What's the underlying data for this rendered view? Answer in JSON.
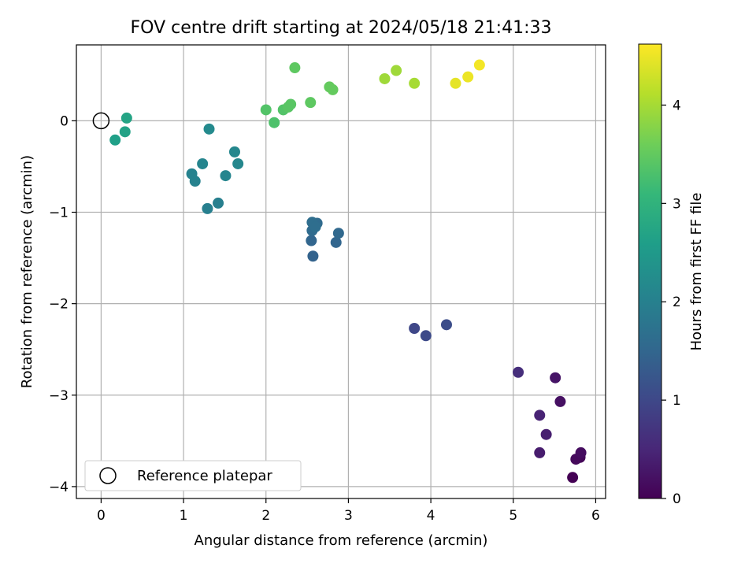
{
  "chart_data": {
    "type": "scatter",
    "title": "FOV centre drift starting at 2024/05/18 21:41:33",
    "xlabel": "Angular distance from reference (arcmin)",
    "ylabel": "Rotation from reference (arcmin)",
    "xlim": [
      -0.3,
      6.12
    ],
    "ylim": [
      -4.13,
      0.83
    ],
    "xticks": [
      0,
      1,
      2,
      3,
      4,
      5,
      6
    ],
    "yticks": [
      -4,
      -3,
      -2,
      -1,
      0
    ],
    "grid": true,
    "legend": {
      "label": "Reference platepar",
      "placement": "lower-left"
    },
    "reference_point": {
      "x": 0,
      "y": 0
    },
    "colorbar": {
      "label": "Hours from first FF file",
      "range": [
        0,
        4.62
      ],
      "ticks": [
        0,
        1,
        2,
        3,
        4
      ],
      "colormap": "viridis",
      "stops": [
        "#440154",
        "#482878",
        "#3e4989",
        "#31688e",
        "#26828e",
        "#1f9e89",
        "#35b779",
        "#6ece58",
        "#b5de2b",
        "#fde725"
      ]
    },
    "points": [
      {
        "x": 5.72,
        "y": -3.9,
        "hours": 0.0
      },
      {
        "x": 5.81,
        "y": -3.68,
        "hours": 0.05
      },
      {
        "x": 5.76,
        "y": -3.7,
        "hours": 0.1
      },
      {
        "x": 5.82,
        "y": -3.63,
        "hours": 0.15
      },
      {
        "x": 5.57,
        "y": -3.07,
        "hours": 0.2
      },
      {
        "x": 5.51,
        "y": -2.81,
        "hours": 0.25
      },
      {
        "x": 5.32,
        "y": -3.63,
        "hours": 0.35
      },
      {
        "x": 5.4,
        "y": -3.43,
        "hours": 0.4
      },
      {
        "x": 5.32,
        "y": -3.22,
        "hours": 0.45
      },
      {
        "x": 5.06,
        "y": -2.75,
        "hours": 0.6
      },
      {
        "x": 3.8,
        "y": -2.27,
        "hours": 1.0
      },
      {
        "x": 3.94,
        "y": -2.35,
        "hours": 1.05
      },
      {
        "x": 4.19,
        "y": -2.23,
        "hours": 1.1
      },
      {
        "x": 2.57,
        "y": -1.48,
        "hours": 1.45
      },
      {
        "x": 2.55,
        "y": -1.31,
        "hours": 1.5
      },
      {
        "x": 2.85,
        "y": -1.33,
        "hours": 1.5
      },
      {
        "x": 2.88,
        "y": -1.23,
        "hours": 1.55
      },
      {
        "x": 2.56,
        "y": -1.2,
        "hours": 1.6
      },
      {
        "x": 2.62,
        "y": -1.12,
        "hours": 1.6
      },
      {
        "x": 2.56,
        "y": -1.11,
        "hours": 1.65
      },
      {
        "x": 2.6,
        "y": -1.16,
        "hours": 1.65
      },
      {
        "x": 1.29,
        "y": -0.96,
        "hours": 2.0
      },
      {
        "x": 1.42,
        "y": -0.9,
        "hours": 2.0
      },
      {
        "x": 1.14,
        "y": -0.66,
        "hours": 2.05
      },
      {
        "x": 1.1,
        "y": -0.58,
        "hours": 2.05
      },
      {
        "x": 1.23,
        "y": -0.47,
        "hours": 2.1
      },
      {
        "x": 1.51,
        "y": -0.6,
        "hours": 2.1
      },
      {
        "x": 1.66,
        "y": -0.47,
        "hours": 2.15
      },
      {
        "x": 1.62,
        "y": -0.34,
        "hours": 2.15
      },
      {
        "x": 1.31,
        "y": -0.09,
        "hours": 2.2
      },
      {
        "x": 0.17,
        "y": -0.21,
        "hours": 2.6
      },
      {
        "x": 0.29,
        "y": -0.12,
        "hours": 2.65
      },
      {
        "x": 0.31,
        "y": 0.03,
        "hours": 2.7
      },
      {
        "x": 2.1,
        "y": -0.02,
        "hours": 3.3
      },
      {
        "x": 2.0,
        "y": 0.12,
        "hours": 3.35
      },
      {
        "x": 2.21,
        "y": 0.12,
        "hours": 3.35
      },
      {
        "x": 2.27,
        "y": 0.15,
        "hours": 3.4
      },
      {
        "x": 2.3,
        "y": 0.18,
        "hours": 3.4
      },
      {
        "x": 2.54,
        "y": 0.2,
        "hours": 3.45
      },
      {
        "x": 2.77,
        "y": 0.37,
        "hours": 3.5
      },
      {
        "x": 2.81,
        "y": 0.34,
        "hours": 3.5
      },
      {
        "x": 2.35,
        "y": 0.58,
        "hours": 3.45
      },
      {
        "x": 3.44,
        "y": 0.46,
        "hours": 3.95
      },
      {
        "x": 3.58,
        "y": 0.55,
        "hours": 3.95
      },
      {
        "x": 3.8,
        "y": 0.41,
        "hours": 4.0
      },
      {
        "x": 4.3,
        "y": 0.41,
        "hours": 4.45
      },
      {
        "x": 4.45,
        "y": 0.48,
        "hours": 4.5
      },
      {
        "x": 4.59,
        "y": 0.61,
        "hours": 4.55
      }
    ]
  }
}
